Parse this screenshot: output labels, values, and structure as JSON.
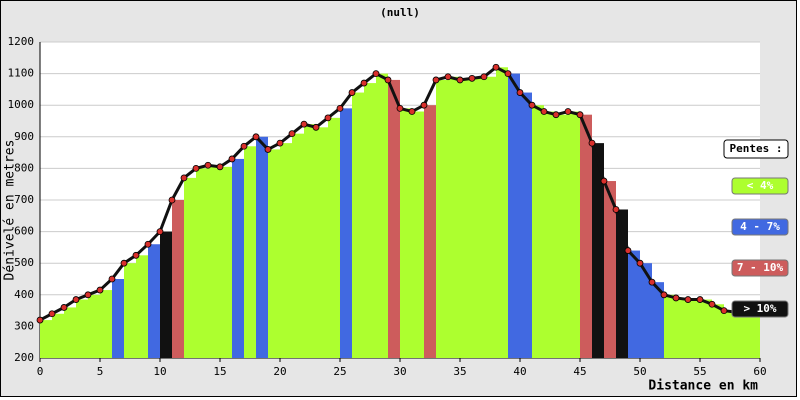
{
  "chart_data": {
    "type": "elevation-profile",
    "title": "(null)",
    "x_label": "Distance en km",
    "y_label": "Dénivelé en metres",
    "x": [
      0,
      1,
      2,
      3,
      4,
      5,
      6,
      7,
      8,
      9,
      10,
      11,
      12,
      13,
      14,
      15,
      16,
      17,
      18,
      19,
      20,
      21,
      22,
      23,
      24,
      25,
      26,
      27,
      28,
      29,
      30,
      31,
      32,
      33,
      34,
      35,
      36,
      37,
      38,
      39,
      40,
      41,
      42,
      43,
      44,
      45,
      46,
      47,
      48,
      49,
      50,
      51,
      52,
      53,
      54,
      55,
      56,
      57,
      58,
      59
    ],
    "values": [
      320,
      340,
      360,
      385,
      400,
      415,
      450,
      500,
      525,
      560,
      600,
      700,
      770,
      800,
      810,
      805,
      830,
      870,
      900,
      860,
      880,
      910,
      940,
      930,
      960,
      990,
      1040,
      1070,
      1100,
      1080,
      990,
      980,
      1000,
      1080,
      1090,
      1080,
      1085,
      1090,
      1120,
      1100,
      1040,
      1000,
      980,
      970,
      980,
      970,
      880,
      760,
      670,
      540,
      500,
      440,
      400,
      390,
      385,
      385,
      370,
      350,
      345,
      350
    ],
    "colors": [
      "#adff2f",
      "#adff2f",
      "#adff2f",
      "#adff2f",
      "#adff2f",
      "#adff2f",
      "#4169e1",
      "#adff2f",
      "#adff2f",
      "#4169e1",
      "#111111",
      "#cd5c5c",
      "#adff2f",
      "#adff2f",
      "#adff2f",
      "#adff2f",
      "#4169e1",
      "#adff2f",
      "#4169e1",
      "#adff2f",
      "#adff2f",
      "#adff2f",
      "#adff2f",
      "#adff2f",
      "#adff2f",
      "#4169e1",
      "#adff2f",
      "#adff2f",
      "#adff2f",
      "#cd5c5c",
      "#adff2f",
      "#adff2f",
      "#cd5c5c",
      "#adff2f",
      "#adff2f",
      "#adff2f",
      "#adff2f",
      "#adff2f",
      "#adff2f",
      "#4169e1",
      "#4169e1",
      "#adff2f",
      "#adff2f",
      "#adff2f",
      "#adff2f",
      "#cd5c5c",
      "#111111",
      "#cd5c5c",
      "#111111",
      "#4169e1",
      "#4169e1",
      "#4169e1",
      "#adff2f",
      "#adff2f",
      "#adff2f",
      "#adff2f",
      "#adff2f",
      "#adff2f",
      "#adff2f",
      "#adff2f"
    ],
    "line_color": "#111111",
    "point_color": "#d9302c",
    "xlim": [
      0,
      60
    ],
    "ylim": [
      200,
      1200
    ],
    "xticks": [
      0,
      5,
      10,
      15,
      20,
      25,
      30,
      35,
      40,
      45,
      50,
      55,
      60
    ],
    "yticks": [
      200,
      300,
      400,
      500,
      600,
      700,
      800,
      900,
      1000,
      1100,
      1200
    ],
    "grid": true,
    "legend": {
      "title": "Pentes :",
      "items": [
        {
          "label": "< 4%",
          "color": "#adff2f"
        },
        {
          "label": "4 - 7%",
          "color": "#4169e1"
        },
        {
          "label": "7 - 10%",
          "color": "#cd5c5c"
        },
        {
          "label": "> 10%",
          "color": "#111111"
        }
      ]
    }
  }
}
